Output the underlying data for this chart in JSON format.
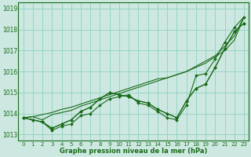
{
  "background_color": "#cce8e0",
  "grid_color": "#99d4c8",
  "line_color": "#1a6b1a",
  "marker_color": "#1a6b1a",
  "xlabel": "Graphe pression niveau de la mer (hPa)",
  "xlim": [
    -0.5,
    23.5
  ],
  "ylim": [
    1012.7,
    1019.3
  ],
  "yticks": [
    1013,
    1014,
    1015,
    1016,
    1017,
    1018,
    1019
  ],
  "xticks": [
    0,
    1,
    2,
    3,
    4,
    5,
    6,
    7,
    8,
    9,
    10,
    11,
    12,
    13,
    14,
    15,
    16,
    17,
    18,
    19,
    20,
    21,
    22,
    23
  ],
  "series": [
    [
      1013.8,
      1013.7,
      1013.6,
      1013.2,
      1013.4,
      1013.5,
      1013.9,
      1014.0,
      1014.4,
      1014.7,
      1014.8,
      1014.9,
      1014.5,
      1014.4,
      1014.1,
      1013.8,
      1013.7,
      1014.4,
      1015.8,
      1015.9,
      1016.6,
      1017.4,
      1018.1,
      1018.6
    ],
    [
      1013.8,
      1013.7,
      1013.6,
      1013.3,
      1013.5,
      1013.7,
      1014.1,
      1014.3,
      1014.7,
      1015.0,
      1014.9,
      1014.8,
      1014.6,
      1014.5,
      1014.2,
      1014.0,
      1013.8,
      1014.6,
      1015.2,
      1015.4,
      1016.2,
      1017.1,
      1017.9,
      1018.3
    ],
    [
      1013.8,
      1013.7,
      1013.6,
      1013.3,
      1013.5,
      1013.7,
      1014.1,
      1014.3,
      1014.7,
      1015.0,
      1014.9,
      1014.8,
      1014.6,
      1014.5,
      1014.2,
      1014.0,
      1013.8,
      1014.6,
      1015.2,
      1015.4,
      1016.2,
      1017.1,
      1017.9,
      1018.3
    ],
    [
      1013.8,
      1013.85,
      1013.7,
      1013.95,
      1014.05,
      1014.15,
      1014.35,
      1014.5,
      1014.65,
      1014.8,
      1014.95,
      1015.1,
      1015.25,
      1015.4,
      1015.55,
      1015.7,
      1015.85,
      1016.0,
      1016.2,
      1016.4,
      1016.7,
      1017.0,
      1017.5,
      1018.6
    ],
    [
      1013.8,
      1013.85,
      1013.95,
      1014.05,
      1014.2,
      1014.3,
      1014.45,
      1014.6,
      1014.75,
      1014.9,
      1015.05,
      1015.2,
      1015.35,
      1015.5,
      1015.65,
      1015.7,
      1015.85,
      1016.0,
      1016.25,
      1016.5,
      1016.75,
      1017.2,
      1017.7,
      1018.6
    ]
  ],
  "marker_series": [
    0,
    1,
    2
  ],
  "no_marker_series": [
    3,
    4
  ]
}
